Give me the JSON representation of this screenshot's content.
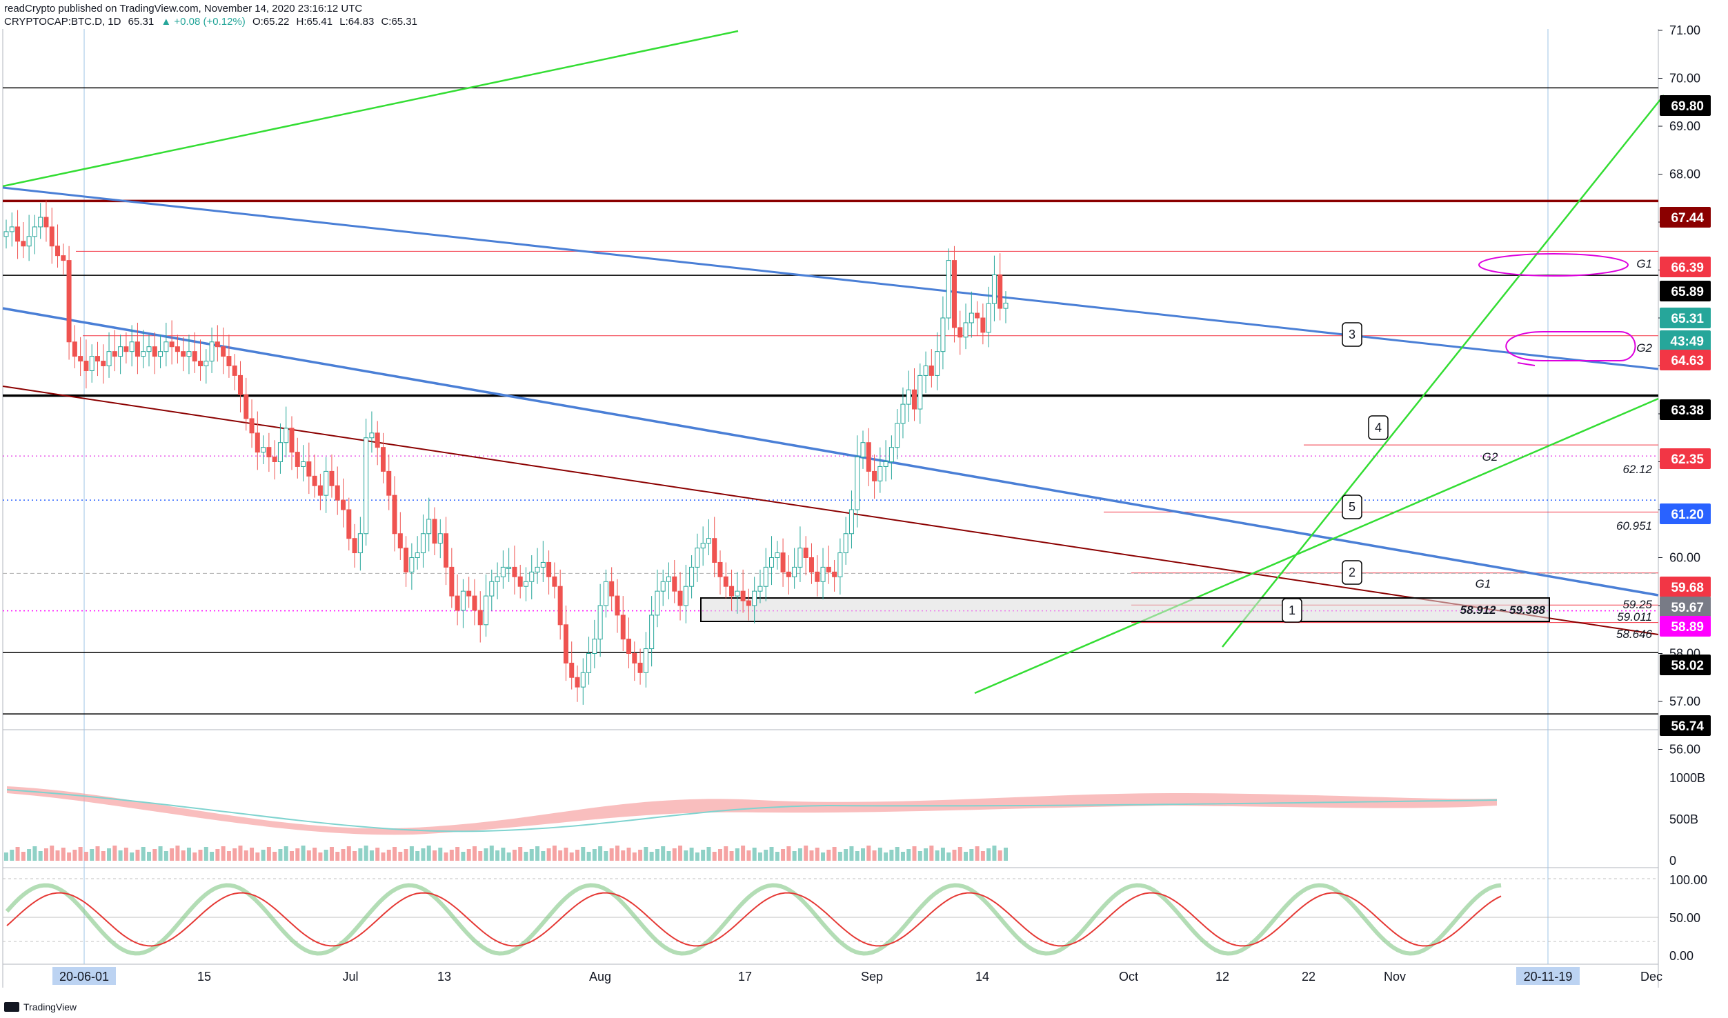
{
  "header": {
    "line1": "readCrypto published on TradingView.com, November 14, 2020 23:16:12 UTC",
    "symbol": "CRYPTOCAP:BTC.D, 1D",
    "last": "65.31",
    "change": "▲ +0.08 (+0.12%)",
    "open": "O:65.22",
    "high": "H:65.41",
    "low": "L:64.83",
    "close": "C:65.31"
  },
  "footer": {
    "brand": "TradingView"
  },
  "colors": {
    "up": "#26a69a",
    "down": "#ef5350",
    "blue_line": "#4a7fd6",
    "green_line": "#33dd33",
    "dark_red": "#8b0000",
    "magenta": "#dd00dd"
  },
  "chart_data": {
    "type": "candlestick",
    "title": "CRYPTOCAP:BTC.D, 1D",
    "ylim": [
      56.0,
      71.3
    ],
    "y_ticks": [
      "71.00",
      "70.00",
      "69.00",
      "68.00",
      "67.00",
      "66.00",
      "65.00",
      "64.00",
      "63.00",
      "62.00",
      "61.00",
      "60.00",
      "59.00",
      "58.00",
      "57.00",
      "56.00"
    ],
    "x_ticks": [
      "20-06-01",
      "15",
      "Jul",
      "13",
      "Aug",
      "17",
      "Sep",
      "14",
      "Oct",
      "12",
      "22",
      "Nov",
      "20-11-19",
      "Dec"
    ],
    "horizontal_levels": [
      {
        "label": "69.80",
        "color": "#000000"
      },
      {
        "label": "67.44",
        "color": "#8b0000"
      },
      {
        "label": "66.39",
        "color": "#f23645"
      },
      {
        "label": "65.89",
        "color": "#000000"
      },
      {
        "label": "65.31",
        "color": "#26a69a"
      },
      {
        "label": "43:49",
        "color": "#26a69a"
      },
      {
        "label": "64.63",
        "color": "#f23645"
      },
      {
        "label": "63.38",
        "color": "#000000"
      },
      {
        "label": "62.35",
        "color": "#f23645"
      },
      {
        "label": "61.20",
        "color": "#2962ff"
      },
      {
        "label": "59.68",
        "color": "#f23645"
      },
      {
        "label": "59.67",
        "color": "#787b86"
      },
      {
        "label": "58.89",
        "color": "#ff00ff"
      },
      {
        "label": "58.02",
        "color": "#000000"
      },
      {
        "label": "56.74",
        "color": "#000000"
      }
    ],
    "annotations": [
      "G1",
      "G2",
      "G2",
      "G1",
      "62.12",
      "60.951",
      "59.25",
      "59.011",
      "58.646",
      "58.912 ~ 59.388",
      "1",
      "2",
      "3",
      "4",
      "5"
    ],
    "close_series": [
      66.8,
      66.9,
      66.6,
      66.5,
      66.7,
      66.9,
      67.1,
      66.9,
      66.5,
      66.3,
      66.2,
      64.5,
      64.2,
      64.1,
      63.9,
      64.2,
      64.1,
      64.0,
      64.3,
      64.2,
      64.4,
      64.3,
      64.5,
      64.2,
      64.3,
      64.4,
      64.2,
      64.3,
      64.5,
      64.4,
      64.3,
      64.2,
      64.3,
      64.1,
      64.0,
      64.1,
      64.5,
      64.4,
      64.2,
      64.0,
      63.8,
      63.4,
      62.9,
      62.6,
      62.2,
      62.3,
      62.1,
      62.0,
      62.4,
      62.7,
      62.2,
      61.9,
      62.0,
      61.7,
      61.5,
      61.3,
      61.8,
      61.5,
      61.2,
      61.0,
      60.4,
      60.1,
      60.5,
      62.5,
      62.6,
      62.3,
      61.8,
      61.3,
      60.5,
      60.2,
      59.7,
      60.0,
      60.1,
      60.5,
      60.8,
      60.3,
      60.5,
      59.8,
      59.2,
      58.9,
      59.3,
      59.2,
      58.9,
      58.6,
      59.2,
      59.5,
      59.6,
      59.8,
      59.8,
      59.6,
      59.4,
      59.5,
      59.7,
      59.8,
      59.9,
      59.6,
      59.4,
      58.6,
      57.8,
      57.5,
      57.3,
      57.6,
      58.0,
      58.3,
      59.0,
      59.5,
      59.2,
      58.8,
      58.3,
      58.0,
      57.8,
      57.6,
      58.1,
      58.8,
      59.3,
      59.5,
      59.6,
      59.3,
      59.0,
      59.4,
      59.8,
      60.2,
      60.3,
      60.4,
      59.9,
      59.6,
      59.4,
      59.2,
      59.3,
      59.1,
      59.0,
      59.3,
      59.4,
      59.8,
      60.0,
      60.1,
      59.7,
      59.6,
      59.8,
      60.2,
      60.0,
      59.7,
      59.5,
      59.8,
      59.7,
      59.6,
      60.1,
      60.5,
      61.0,
      62.1,
      62.4,
      61.8,
      61.6,
      61.9,
      62.0,
      62.3,
      62.8,
      63.2,
      63.5,
      63.1,
      63.8,
      64.0,
      63.8,
      64.3,
      65.0,
      66.2,
      64.8,
      64.6,
      64.9,
      65.1,
      65.0,
      64.7,
      65.3,
      65.9,
      65.2,
      65.31
    ],
    "volume_ticks": [
      "1000B",
      "500B",
      "0"
    ],
    "oscillator_ticks": [
      "100.00",
      "50.00",
      "0.00"
    ]
  }
}
